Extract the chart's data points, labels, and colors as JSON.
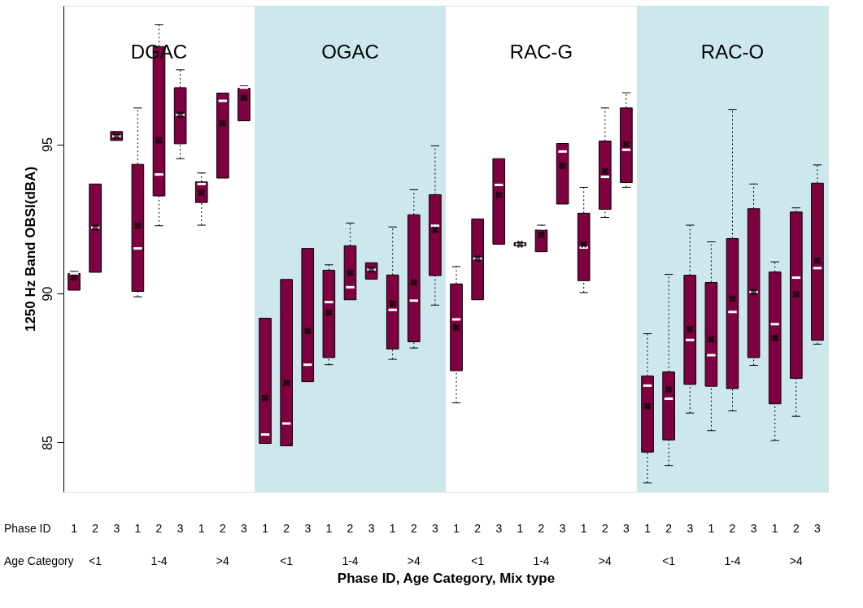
{
  "chart_data": {
    "type": "box",
    "xlabel": "Phase ID, Age Category, Mix type",
    "ylabel": "1250 Hz Band OBSI(dBA)",
    "categories": [
      "1",
      "2",
      "3",
      "1",
      "2",
      "3",
      "1",
      "2",
      "3",
      "1",
      "2",
      "3",
      "1",
      "2",
      "3",
      "1",
      "2",
      "3",
      "1",
      "2",
      "3",
      "1",
      "2",
      "3",
      "1",
      "2",
      "3",
      "1",
      "2",
      "3",
      "1",
      "2",
      "3",
      "1",
      "2",
      "3"
    ],
    "color": "#7f0040",
    "boxes": [
      {
        "low": 90.11,
        "q1": 90.11,
        "median": 90.67,
        "q3": 90.67,
        "high": 90.74,
        "mean": 90.53
      },
      {
        "low": 90.71,
        "q1": 90.71,
        "median": 92.21,
        "q3": 93.67,
        "high": 93.67,
        "mean": 92.21
      },
      {
        "low": 95.13,
        "q1": 95.13,
        "median": 95.27,
        "q3": 95.43,
        "high": 95.43,
        "mean": 95.27
      },
      {
        "low": 89.89,
        "q1": 90.07,
        "median": 91.51,
        "q3": 94.33,
        "high": 96.22,
        "mean": 92.27
      },
      {
        "low": 92.27,
        "q1": 93.27,
        "median": 93.99,
        "q3": 98.28,
        "high": 99.01,
        "mean": 95.13
      },
      {
        "low": 94.52,
        "q1": 95.02,
        "median": 95.99,
        "q3": 96.9,
        "high": 97.5,
        "mean": 95.99
      },
      {
        "low": 92.29,
        "q1": 93.05,
        "median": 93.67,
        "q3": 93.74,
        "high": 94.04,
        "mean": 93.38
      },
      {
        "low": 93.87,
        "q1": 93.87,
        "median": 96.46,
        "q3": 96.72,
        "high": 96.72,
        "mean": 95.71
      },
      {
        "low": 95.79,
        "q1": 95.79,
        "median": 96.9,
        "q3": 96.88,
        "high": 96.96,
        "mean": 96.56
      },
      {
        "low": 84.97,
        "q1": 84.97,
        "median": 85.27,
        "q3": 89.17,
        "high": 89.17,
        "mean": 86.49
      },
      {
        "low": 84.89,
        "q1": 84.89,
        "median": 85.64,
        "q3": 90.47,
        "high": 90.47,
        "mean": 87.0
      },
      {
        "low": 87.04,
        "q1": 87.04,
        "median": 87.61,
        "q3": 91.51,
        "high": 91.51,
        "mean": 88.74
      },
      {
        "low": 87.61,
        "q1": 87.85,
        "median": 89.71,
        "q3": 90.78,
        "high": 90.96,
        "mean": 89.36
      },
      {
        "low": 89.79,
        "q1": 89.79,
        "median": 90.21,
        "q3": 91.6,
        "high": 92.36,
        "mean": 90.69
      },
      {
        "low": 90.48,
        "q1": 90.48,
        "median": 90.8,
        "q3": 91.03,
        "high": 91.03,
        "mean": 90.8
      },
      {
        "low": 87.79,
        "q1": 88.14,
        "median": 89.45,
        "q3": 90.62,
        "high": 92.23,
        "mean": 89.66
      },
      {
        "low": 88.17,
        "q1": 88.38,
        "median": 89.76,
        "q3": 92.64,
        "high": 93.48,
        "mean": 90.37
      },
      {
        "low": 89.61,
        "q1": 90.6,
        "median": 92.27,
        "q3": 93.31,
        "high": 94.95,
        "mean": 92.13
      },
      {
        "low": 86.33,
        "q1": 87.41,
        "median": 89.13,
        "q3": 90.32,
        "high": 90.9,
        "mean": 88.86
      },
      {
        "low": 89.79,
        "q1": 89.79,
        "median": 91.17,
        "q3": 92.5,
        "high": 92.5,
        "mean": 91.17
      },
      {
        "low": 91.65,
        "q1": 91.65,
        "median": 93.64,
        "q3": 94.52,
        "high": 94.52,
        "mean": 93.3
      },
      {
        "low": 91.6,
        "q1": 91.6,
        "median": 91.65,
        "q3": 91.7,
        "high": 91.7,
        "mean": 91.65
      },
      {
        "low": 91.4,
        "q1": 91.4,
        "median": 92.18,
        "q3": 92.13,
        "high": 92.29,
        "mean": 91.97
      },
      {
        "low": 93.0,
        "q1": 93.0,
        "median": 94.76,
        "q3": 95.03,
        "high": 95.03,
        "mean": 94.28
      },
      {
        "low": 90.03,
        "q1": 90.43,
        "median": 91.54,
        "q3": 92.69,
        "high": 93.56,
        "mean": 91.65
      },
      {
        "low": 92.55,
        "q1": 92.82,
        "median": 93.91,
        "q3": 95.11,
        "high": 96.22,
        "mean": 94.1
      },
      {
        "low": 93.56,
        "q1": 93.72,
        "median": 94.82,
        "q3": 96.22,
        "high": 96.73,
        "mean": 95.0
      },
      {
        "low": 83.65,
        "q1": 84.68,
        "median": 86.91,
        "q3": 87.23,
        "high": 88.65,
        "mean": 86.22
      },
      {
        "low": 84.23,
        "q1": 85.09,
        "median": 86.47,
        "q3": 87.37,
        "high": 90.64,
        "mean": 86.78
      },
      {
        "low": 85.99,
        "q1": 86.95,
        "median": 88.44,
        "q3": 90.61,
        "high": 92.29,
        "mean": 88.8
      },
      {
        "low": 85.4,
        "q1": 86.89,
        "median": 87.93,
        "q3": 90.37,
        "high": 91.73,
        "mean": 88.46
      },
      {
        "low": 86.06,
        "q1": 86.81,
        "median": 89.38,
        "q3": 91.84,
        "high": 96.17,
        "mean": 89.82
      },
      {
        "low": 87.59,
        "q1": 87.85,
        "median": 90.05,
        "q3": 92.84,
        "high": 93.67,
        "mean": 90.05
      },
      {
        "low": 85.07,
        "q1": 86.3,
        "median": 88.97,
        "q3": 90.72,
        "high": 91.06,
        "mean": 88.51
      },
      {
        "low": 85.88,
        "q1": 87.15,
        "median": 90.53,
        "q3": 92.73,
        "high": 92.87,
        "mean": 89.97
      },
      {
        "low": 88.3,
        "q1": 88.43,
        "median": 90.85,
        "q3": 93.7,
        "high": 94.31,
        "mean": 91.1
      }
    ],
    "ylim": [
      83.35,
      99.65
    ],
    "yticks": [
      85,
      90,
      95
    ],
    "annotations": [
      "Phase ID",
      "Age Category",
      "<1",
      "1-4",
      ">4",
      "<1",
      "1-4",
      ">4",
      "<1",
      "1-4",
      ">4",
      "<1",
      "1-4",
      ">4",
      "DGAC",
      "OGAC",
      "RAC-G",
      "RAC-O"
    ],
    "grid": false
  }
}
